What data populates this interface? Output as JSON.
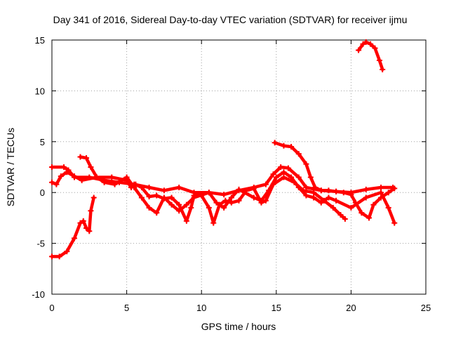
{
  "chart_data": {
    "type": "scatter",
    "title": "Day 341 of 2016, Sidereal Day-to-day VTEC variation (SDTVAR) for receiver ijmu",
    "xlabel": "GPS time / hours",
    "ylabel": "SDTVAR / TECUs",
    "xlim": [
      0,
      25
    ],
    "ylim": [
      -10,
      15
    ],
    "xticks": [
      0,
      5,
      10,
      15,
      20,
      25
    ],
    "yticks": [
      -10,
      -5,
      0,
      5,
      10,
      15
    ],
    "grid": true,
    "marker": "plus",
    "color": "#ff0000",
    "series": [
      {
        "name": "track-1",
        "points": [
          [
            0.0,
            -6.3
          ],
          [
            0.5,
            -6.3
          ],
          [
            1.0,
            -5.8
          ],
          [
            1.5,
            -4.5
          ],
          [
            1.9,
            -3.0
          ],
          [
            2.1,
            -2.8
          ],
          [
            2.3,
            -3.5
          ],
          [
            2.5,
            -3.8
          ],
          [
            2.6,
            -1.8
          ],
          [
            2.8,
            -0.5
          ]
        ]
      },
      {
        "name": "track-2",
        "points": [
          [
            0.0,
            2.5
          ],
          [
            0.8,
            2.5
          ],
          [
            1.1,
            2.2
          ],
          [
            1.5,
            1.5
          ],
          [
            2.5,
            1.5
          ],
          [
            3.5,
            1.2
          ],
          [
            4.5,
            1.0
          ],
          [
            5.5,
            0.8
          ],
          [
            6.5,
            0.5
          ],
          [
            7.5,
            0.2
          ],
          [
            8.5,
            0.5
          ],
          [
            9.5,
            0.0
          ],
          [
            10.5,
            0.0
          ],
          [
            11.5,
            -0.2
          ],
          [
            12.5,
            0.2
          ],
          [
            13.5,
            0.5
          ],
          [
            14.3,
            0.8
          ],
          [
            14.8,
            1.8
          ],
          [
            15.3,
            2.5
          ],
          [
            15.8,
            2.4
          ],
          [
            16.5,
            1.5
          ],
          [
            17.0,
            0.5
          ],
          [
            18.0,
            0.2
          ],
          [
            19.0,
            0.1
          ],
          [
            20.0,
            0.0
          ],
          [
            21.0,
            0.3
          ],
          [
            22.0,
            0.5
          ],
          [
            22.8,
            0.5
          ]
        ]
      },
      {
        "name": "track-3",
        "points": [
          [
            0.0,
            1.0
          ],
          [
            0.3,
            0.8
          ],
          [
            0.6,
            1.6
          ],
          [
            1.0,
            2.0
          ],
          [
            1.5,
            1.6
          ],
          [
            2.0,
            1.2
          ],
          [
            3.0,
            1.5
          ],
          [
            4.0,
            1.5
          ],
          [
            5.0,
            1.2
          ],
          [
            5.3,
            0.5
          ],
          [
            5.6,
            0.8
          ],
          [
            6.0,
            0.5
          ],
          [
            6.5,
            -0.4
          ],
          [
            7.0,
            -0.3
          ],
          [
            7.5,
            -0.6
          ],
          [
            8.0,
            -0.5
          ],
          [
            8.5,
            -1.2
          ],
          [
            9.0,
            -2.8
          ],
          [
            9.3,
            -1.5
          ],
          [
            9.5,
            -0.3
          ],
          [
            10.0,
            -0.3
          ],
          [
            10.5,
            -1.5
          ],
          [
            10.8,
            -3.0
          ],
          [
            11.2,
            -1.2
          ],
          [
            11.6,
            -0.8
          ],
          [
            12.0,
            -1.0
          ],
          [
            12.5,
            -0.8
          ],
          [
            13.0,
            0.2
          ],
          [
            13.5,
            0.4
          ],
          [
            14.0,
            -1.0
          ],
          [
            14.3,
            -0.8
          ],
          [
            14.8,
            0.8
          ],
          [
            15.5,
            1.5
          ],
          [
            16.2,
            1.0
          ],
          [
            16.8,
            0.2
          ],
          [
            17.5,
            0.0
          ],
          [
            18.2,
            -0.8
          ],
          [
            18.8,
            -1.5
          ],
          [
            19.3,
            -2.2
          ],
          [
            19.6,
            -2.6
          ]
        ]
      },
      {
        "name": "track-4",
        "points": [
          [
            1.9,
            3.5
          ],
          [
            2.3,
            3.4
          ],
          [
            2.6,
            2.5
          ],
          [
            3.0,
            1.5
          ],
          [
            3.5,
            1.0
          ],
          [
            4.2,
            0.8
          ],
          [
            5.0,
            1.5
          ],
          [
            5.5,
            0.5
          ],
          [
            6.0,
            -0.5
          ],
          [
            6.5,
            -1.5
          ],
          [
            7.0,
            -2.0
          ],
          [
            7.5,
            -0.5
          ],
          [
            8.0,
            -1.2
          ],
          [
            8.5,
            -1.8
          ],
          [
            9.0,
            -1.2
          ],
          [
            9.5,
            -0.5
          ],
          [
            10.5,
            0.0
          ],
          [
            11.0,
            -1.0
          ],
          [
            11.5,
            -1.5
          ],
          [
            12.0,
            -0.5
          ],
          [
            12.5,
            0.3
          ],
          [
            13.5,
            -0.5
          ],
          [
            14.0,
            -0.8
          ],
          [
            14.5,
            0.2
          ],
          [
            15.0,
            1.5
          ],
          [
            15.5,
            2.0
          ],
          [
            16.0,
            1.5
          ],
          [
            16.5,
            0.5
          ],
          [
            17.0,
            -0.3
          ],
          [
            17.5,
            -0.5
          ],
          [
            18.0,
            -1.0
          ],
          [
            18.5,
            -0.5
          ],
          [
            19.0,
            -0.8
          ],
          [
            20.0,
            -1.5
          ],
          [
            21.0,
            -0.5
          ],
          [
            22.0,
            0.0
          ],
          [
            22.5,
            -1.5
          ],
          [
            22.9,
            -3.0
          ]
        ]
      },
      {
        "name": "track-5",
        "points": [
          [
            14.9,
            4.9
          ],
          [
            15.5,
            4.6
          ],
          [
            16.0,
            4.5
          ],
          [
            16.5,
            3.8
          ],
          [
            17.0,
            2.8
          ],
          [
            17.3,
            1.5
          ],
          [
            17.6,
            0.5
          ],
          [
            18.0,
            0.2
          ],
          [
            18.5,
            0.2
          ],
          [
            19.0,
            0.1
          ],
          [
            19.5,
            0.0
          ],
          [
            20.0,
            -0.2
          ],
          [
            20.3,
            -1.0
          ],
          [
            20.7,
            -2.0
          ],
          [
            21.2,
            -2.5
          ],
          [
            21.5,
            -1.2
          ],
          [
            22.0,
            -0.5
          ],
          [
            22.5,
            0.0
          ],
          [
            22.9,
            0.4
          ]
        ]
      },
      {
        "name": "track-6",
        "points": [
          [
            20.5,
            14.0
          ],
          [
            20.8,
            14.6
          ],
          [
            21.0,
            14.8
          ],
          [
            21.3,
            14.6
          ],
          [
            21.6,
            14.2
          ],
          [
            21.9,
            13.0
          ],
          [
            22.1,
            12.1
          ]
        ]
      }
    ]
  }
}
